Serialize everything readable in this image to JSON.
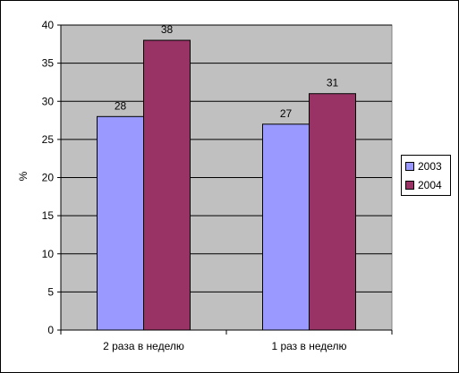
{
  "chart_data": {
    "type": "bar",
    "categories": [
      "2 раза в неделю",
      "1 раз в неделю"
    ],
    "series": [
      {
        "name": "2003",
        "values": [
          28,
          27
        ],
        "color": "#9999FF"
      },
      {
        "name": "2004",
        "values": [
          38,
          31
        ],
        "color": "#993366"
      }
    ],
    "title": "",
    "xlabel": "",
    "ylabel": "%",
    "ylim": [
      0,
      40
    ],
    "yticks": [
      "0",
      "5",
      "10",
      "15",
      "20",
      "25",
      "30",
      "35",
      "40"
    ],
    "grid": true,
    "legend_position": "right",
    "plot_background": "#C0C0C0"
  }
}
